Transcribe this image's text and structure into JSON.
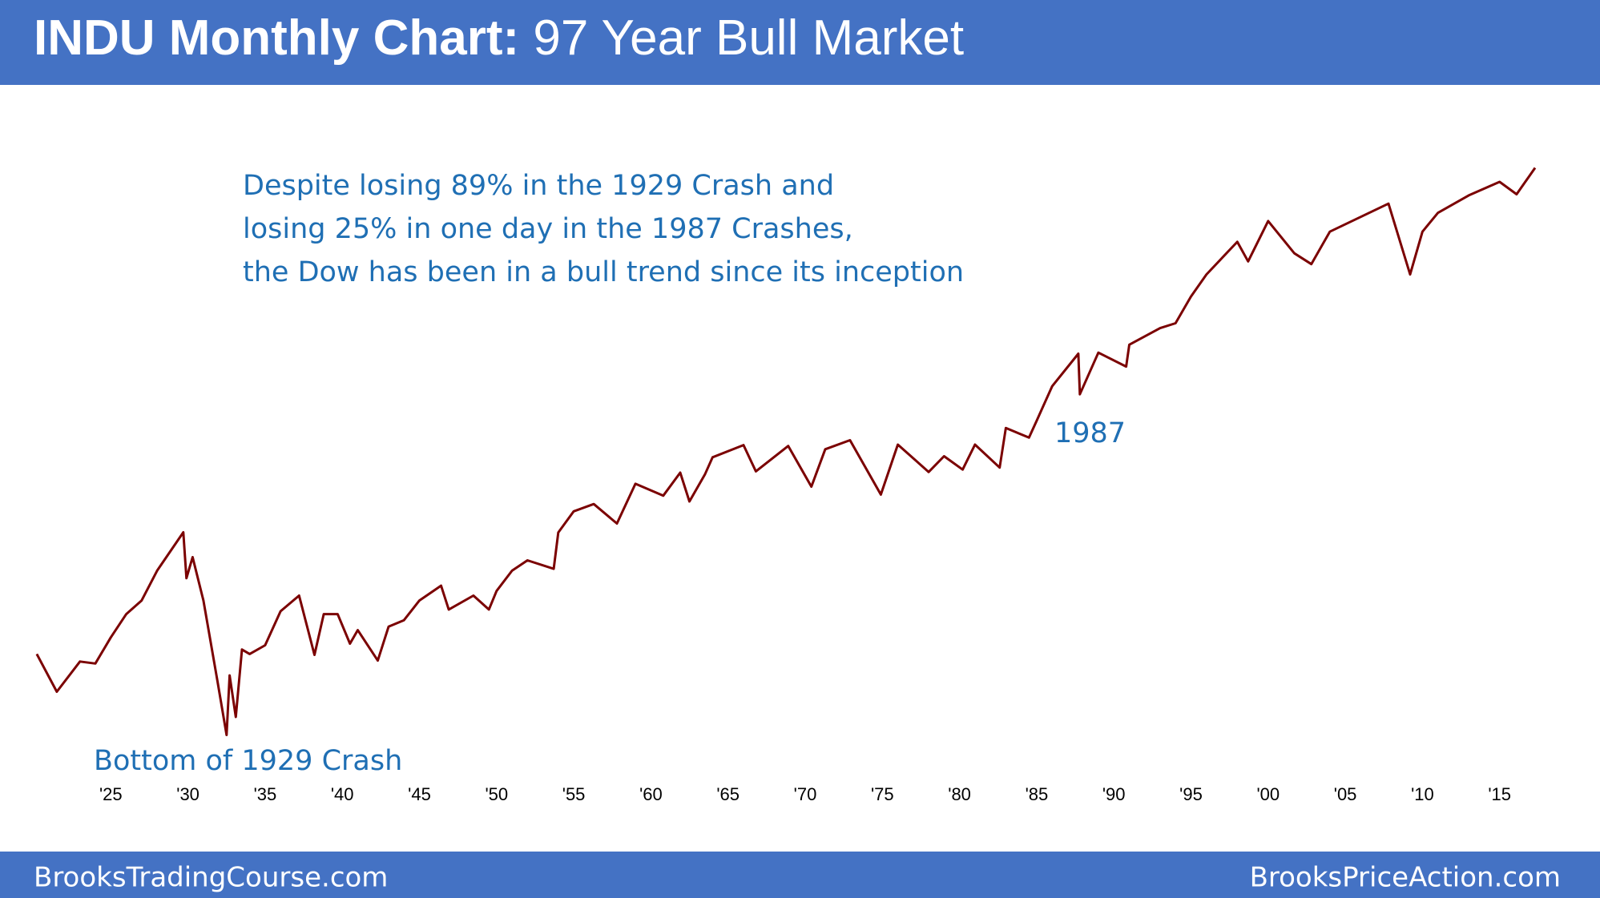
{
  "chart_data": {
    "type": "line",
    "title": "INDU Monthly Chart:",
    "subtitle": "97 Year Bull Market",
    "annotations": [
      "Despite losing 89% in the 1929 Crash and",
      "losing 25% in one day in the 1987 Crashes,",
      "the Dow has been in a bull trend since its inception",
      "1987",
      "Bottom of 1929 Crash"
    ],
    "footer": {
      "left": "BrooksTradingCourse.com",
      "right": "BrooksPriceAction.com"
    },
    "color": "#7b0000",
    "log_scale": true,
    "grid": false,
    "x": [
      1920.2,
      1921.5,
      1923,
      1924,
      1925,
      1926,
      1927,
      1928,
      1929.7,
      1929.9,
      1930.3,
      1931,
      1931.9,
      1932.5,
      1932.7,
      1933.1,
      1933.5,
      1934,
      1935,
      1936,
      1937.2,
      1938.2,
      1938.8,
      1939.7,
      1940.5,
      1941,
      1942.3,
      1943,
      1944,
      1945,
      1946.4,
      1946.9,
      1948.5,
      1949.5,
      1950,
      1951,
      1952,
      1953.7,
      1954,
      1955,
      1956.3,
      1957.8,
      1959,
      1960.8,
      1961.9,
      1962.5,
      1963.5,
      1964,
      1966,
      1966.8,
      1968.9,
      1970.4,
      1971.3,
      1972.9,
      1974.9,
      1976,
      1978,
      1979,
      1980.2,
      1981,
      1982.6,
      1983,
      1984.5,
      1985,
      1986,
      1987.7,
      1987.8,
      1989,
      1990.8,
      1991,
      1993,
      1994,
      1995,
      1996,
      1998,
      1998.7,
      2000,
      2001.7,
      2002.8,
      2004,
      2007.8,
      2009.2,
      2010,
      2011,
      2013,
      2015,
      2016.1,
      2017.3
    ],
    "values": [
      100,
      66,
      92,
      90,
      120,
      155,
      180,
      250,
      381,
      230,
      290,
      180,
      75,
      41,
      79,
      50,
      105,
      100,
      110,
      160,
      190,
      99,
      155,
      155,
      112,
      130,
      93,
      135,
      145,
      180,
      212,
      163,
      190,
      163,
      200,
      250,
      280,
      255,
      380,
      480,
      520,
      420,
      650,
      570,
      735,
      535,
      720,
      870,
      995,
      745,
      985,
      630,
      950,
      1050,
      577,
      1000,
      740,
      880,
      760,
      1000,
      777,
      1200,
      1080,
      1300,
      1900,
      2720,
      1740,
      2750,
      2360,
      3000,
      3600,
      3800,
      5100,
      6500,
      9300,
      7500,
      11700,
      8200,
      7280,
      10400,
      14160,
      6500,
      10400,
      12800,
      15500,
      18000,
      15700,
      21000
    ],
    "xlim": [
      1920,
      2020
    ],
    "ylim": [
      30,
      30000
    ],
    "xticks": [
      {
        "value": 1925,
        "label": "'25"
      },
      {
        "value": 1930,
        "label": "'30"
      },
      {
        "value": 1935,
        "label": "'35"
      },
      {
        "value": 1940,
        "label": "'40"
      },
      {
        "value": 1945,
        "label": "'45"
      },
      {
        "value": 1950,
        "label": "'50"
      },
      {
        "value": 1955,
        "label": "'55"
      },
      {
        "value": 1960,
        "label": "'60"
      },
      {
        "value": 1965,
        "label": "'65"
      },
      {
        "value": 1970,
        "label": "'70"
      },
      {
        "value": 1975,
        "label": "'75"
      },
      {
        "value": 1980,
        "label": "'80"
      },
      {
        "value": 1985,
        "label": "'85"
      },
      {
        "value": 1990,
        "label": "'90"
      },
      {
        "value": 1995,
        "label": "'95"
      },
      {
        "value": 2000,
        "label": "'00"
      },
      {
        "value": 2005,
        "label": "'05"
      },
      {
        "value": 2010,
        "label": "'10"
      },
      {
        "value": 2015,
        "label": "'15"
      }
    ]
  }
}
